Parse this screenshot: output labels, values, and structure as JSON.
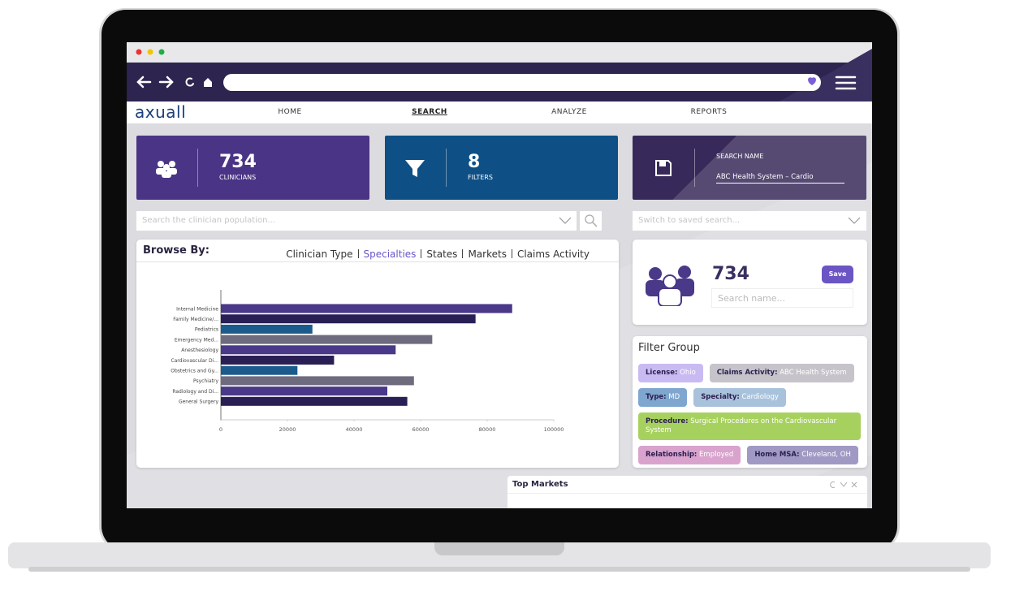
{
  "nav": {
    "logo": "axuall",
    "links": [
      "HOME",
      "SEARCH",
      "ANALYZE",
      "REPORTS"
    ],
    "active_link": 1
  },
  "stats": [
    {
      "value": 734,
      "label": "CLINICIANS"
    },
    {
      "value": 8,
      "label": "FILTERS"
    }
  ],
  "search_name_card": {
    "label": "SEARCH NAME",
    "value": "ABC Health System – Cardio"
  },
  "search": {
    "placeholder": "Search the clinician population...",
    "saved_placeholder": "Switch to saved search..."
  },
  "browse": {
    "title": "Browse By:",
    "tabs": [
      "Clinician Type",
      "Specialties",
      "States",
      "Markets",
      "Claims Activity"
    ],
    "active_tab": 1,
    "chart": {
      "type": "bar",
      "orientation": "horizontal",
      "categories": [
        "Internal Medicine",
        "Family Medicine/...",
        "Pediatrics",
        "Emergency Med...",
        "Anesthesiology",
        "Cardiovascular Di...",
        "Obstetrics and Gy...",
        "Psychiatry",
        "Radiology and Di...",
        "General Surgery"
      ],
      "values": [
        87500,
        76500,
        27500,
        63500,
        52500,
        34000,
        23000,
        58000,
        50000,
        56000
      ],
      "colors": [
        "#4a3888",
        "#2a1f55",
        "#1b5a8c",
        "#6f6b7f",
        "#4a3888",
        "#2a1f55",
        "#1b5a8c",
        "#6f6b7f",
        "#4a3888",
        "#2a1f55"
      ],
      "xlim": [
        0,
        100000
      ],
      "xticks": [
        0,
        20000,
        40000,
        60000,
        80000,
        100000
      ]
    }
  },
  "save_panel": {
    "count": 734,
    "button": "Save",
    "placeholder": "Search name..."
  },
  "filter_group": {
    "title": "Filter Group",
    "chips": [
      {
        "key": "License:",
        "value": "Ohio",
        "color": "#c9baf2"
      },
      {
        "key": "Claims Activity:",
        "value": "ABC Health System",
        "color": "#c6c4ca"
      },
      {
        "key": "Type:",
        "value": "MD",
        "color": "#7fa6cf"
      },
      {
        "key": "Specialty:",
        "value": "Cardiology",
        "color": "#a9c2dc"
      },
      {
        "key": "Procedure:",
        "value": "Surgical Procedures on the Cardiovascular System",
        "color": "#a7d15f"
      },
      {
        "key": "Relationship:",
        "value": "Employed",
        "color": "#d9a3cd"
      },
      {
        "key": "Home MSA:",
        "value": "Cleveland, OH",
        "color": "#a099c4"
      }
    ]
  },
  "top_markets": {
    "title": "Top Markets"
  }
}
